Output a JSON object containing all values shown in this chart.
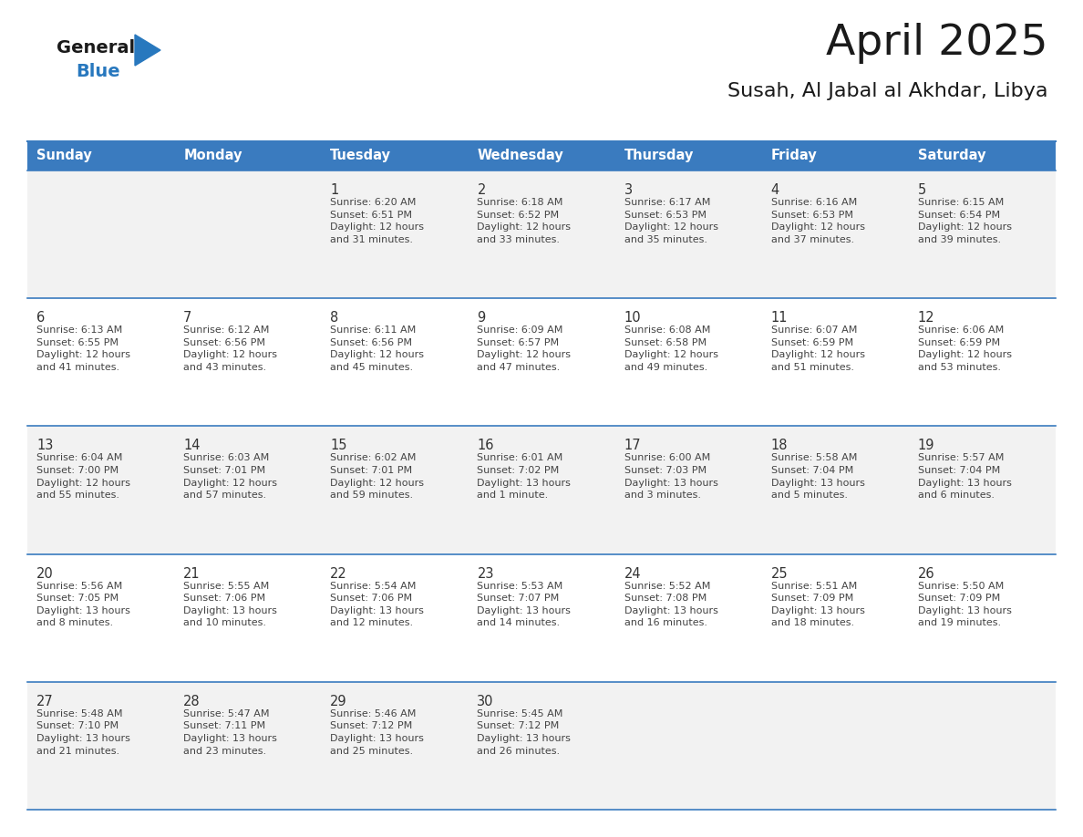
{
  "title": "April 2025",
  "subtitle": "Susah, Al Jabal al Akhdar, Libya",
  "header_bg_color": "#3a7bbf",
  "header_text_color": "#ffffff",
  "days_of_week": [
    "Sunday",
    "Monday",
    "Tuesday",
    "Wednesday",
    "Thursday",
    "Friday",
    "Saturday"
  ],
  "row_colors": [
    "#f2f2f2",
    "#ffffff"
  ],
  "cell_border_color": "#3a7bbf",
  "text_color": "#444444",
  "number_color": "#333333",
  "logo_general_color": "#1a1a1a",
  "logo_blue_color": "#2878be",
  "title_color": "#1a1a1a",
  "calendar_data": [
    [
      {
        "day": "",
        "info": ""
      },
      {
        "day": "",
        "info": ""
      },
      {
        "day": "1",
        "info": "Sunrise: 6:20 AM\nSunset: 6:51 PM\nDaylight: 12 hours\nand 31 minutes."
      },
      {
        "day": "2",
        "info": "Sunrise: 6:18 AM\nSunset: 6:52 PM\nDaylight: 12 hours\nand 33 minutes."
      },
      {
        "day": "3",
        "info": "Sunrise: 6:17 AM\nSunset: 6:53 PM\nDaylight: 12 hours\nand 35 minutes."
      },
      {
        "day": "4",
        "info": "Sunrise: 6:16 AM\nSunset: 6:53 PM\nDaylight: 12 hours\nand 37 minutes."
      },
      {
        "day": "5",
        "info": "Sunrise: 6:15 AM\nSunset: 6:54 PM\nDaylight: 12 hours\nand 39 minutes."
      }
    ],
    [
      {
        "day": "6",
        "info": "Sunrise: 6:13 AM\nSunset: 6:55 PM\nDaylight: 12 hours\nand 41 minutes."
      },
      {
        "day": "7",
        "info": "Sunrise: 6:12 AM\nSunset: 6:56 PM\nDaylight: 12 hours\nand 43 minutes."
      },
      {
        "day": "8",
        "info": "Sunrise: 6:11 AM\nSunset: 6:56 PM\nDaylight: 12 hours\nand 45 minutes."
      },
      {
        "day": "9",
        "info": "Sunrise: 6:09 AM\nSunset: 6:57 PM\nDaylight: 12 hours\nand 47 minutes."
      },
      {
        "day": "10",
        "info": "Sunrise: 6:08 AM\nSunset: 6:58 PM\nDaylight: 12 hours\nand 49 minutes."
      },
      {
        "day": "11",
        "info": "Sunrise: 6:07 AM\nSunset: 6:59 PM\nDaylight: 12 hours\nand 51 minutes."
      },
      {
        "day": "12",
        "info": "Sunrise: 6:06 AM\nSunset: 6:59 PM\nDaylight: 12 hours\nand 53 minutes."
      }
    ],
    [
      {
        "day": "13",
        "info": "Sunrise: 6:04 AM\nSunset: 7:00 PM\nDaylight: 12 hours\nand 55 minutes."
      },
      {
        "day": "14",
        "info": "Sunrise: 6:03 AM\nSunset: 7:01 PM\nDaylight: 12 hours\nand 57 minutes."
      },
      {
        "day": "15",
        "info": "Sunrise: 6:02 AM\nSunset: 7:01 PM\nDaylight: 12 hours\nand 59 minutes."
      },
      {
        "day": "16",
        "info": "Sunrise: 6:01 AM\nSunset: 7:02 PM\nDaylight: 13 hours\nand 1 minute."
      },
      {
        "day": "17",
        "info": "Sunrise: 6:00 AM\nSunset: 7:03 PM\nDaylight: 13 hours\nand 3 minutes."
      },
      {
        "day": "18",
        "info": "Sunrise: 5:58 AM\nSunset: 7:04 PM\nDaylight: 13 hours\nand 5 minutes."
      },
      {
        "day": "19",
        "info": "Sunrise: 5:57 AM\nSunset: 7:04 PM\nDaylight: 13 hours\nand 6 minutes."
      }
    ],
    [
      {
        "day": "20",
        "info": "Sunrise: 5:56 AM\nSunset: 7:05 PM\nDaylight: 13 hours\nand 8 minutes."
      },
      {
        "day": "21",
        "info": "Sunrise: 5:55 AM\nSunset: 7:06 PM\nDaylight: 13 hours\nand 10 minutes."
      },
      {
        "day": "22",
        "info": "Sunrise: 5:54 AM\nSunset: 7:06 PM\nDaylight: 13 hours\nand 12 minutes."
      },
      {
        "day": "23",
        "info": "Sunrise: 5:53 AM\nSunset: 7:07 PM\nDaylight: 13 hours\nand 14 minutes."
      },
      {
        "day": "24",
        "info": "Sunrise: 5:52 AM\nSunset: 7:08 PM\nDaylight: 13 hours\nand 16 minutes."
      },
      {
        "day": "25",
        "info": "Sunrise: 5:51 AM\nSunset: 7:09 PM\nDaylight: 13 hours\nand 18 minutes."
      },
      {
        "day": "26",
        "info": "Sunrise: 5:50 AM\nSunset: 7:09 PM\nDaylight: 13 hours\nand 19 minutes."
      }
    ],
    [
      {
        "day": "27",
        "info": "Sunrise: 5:48 AM\nSunset: 7:10 PM\nDaylight: 13 hours\nand 21 minutes."
      },
      {
        "day": "28",
        "info": "Sunrise: 5:47 AM\nSunset: 7:11 PM\nDaylight: 13 hours\nand 23 minutes."
      },
      {
        "day": "29",
        "info": "Sunrise: 5:46 AM\nSunset: 7:12 PM\nDaylight: 13 hours\nand 25 minutes."
      },
      {
        "day": "30",
        "info": "Sunrise: 5:45 AM\nSunset: 7:12 PM\nDaylight: 13 hours\nand 26 minutes."
      },
      {
        "day": "",
        "info": ""
      },
      {
        "day": "",
        "info": ""
      },
      {
        "day": "",
        "info": ""
      }
    ]
  ]
}
